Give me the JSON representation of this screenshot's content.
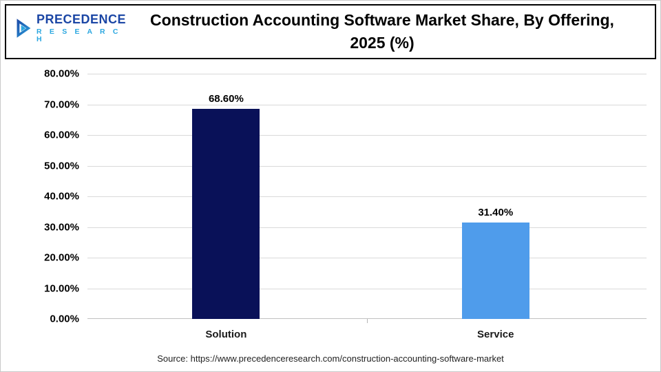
{
  "header": {
    "logo": {
      "name": "PRECEDENCE",
      "sub": "R E S E A R C H"
    },
    "title_line1": "Construction Accounting Software Market Share, By Offering,",
    "title_line2": "2025 (%)"
  },
  "chart_data": {
    "type": "bar",
    "title": "Construction Accounting Software Market Share, By Offering, 2025 (%)",
    "categories": [
      "Solution",
      "Service"
    ],
    "values": [
      68.6,
      31.4
    ],
    "value_labels": [
      "68.60%",
      "31.40%"
    ],
    "ylim": [
      0,
      80
    ],
    "ytick_labels": [
      "80.00%",
      "70.00%",
      "60.00%",
      "50.00%",
      "40.00%",
      "30.00%",
      "20.00%",
      "10.00%",
      "0.00%"
    ],
    "bar_colors": [
      "#091158",
      "#4f9ceb"
    ],
    "bar_positions_pct": [
      24.8,
      73.0
    ],
    "grid": true,
    "legend": "none",
    "xlabel": "",
    "ylabel": ""
  },
  "source": {
    "text": "Source: https://www.precedenceresearch.com/construction-accounting-software-market"
  }
}
